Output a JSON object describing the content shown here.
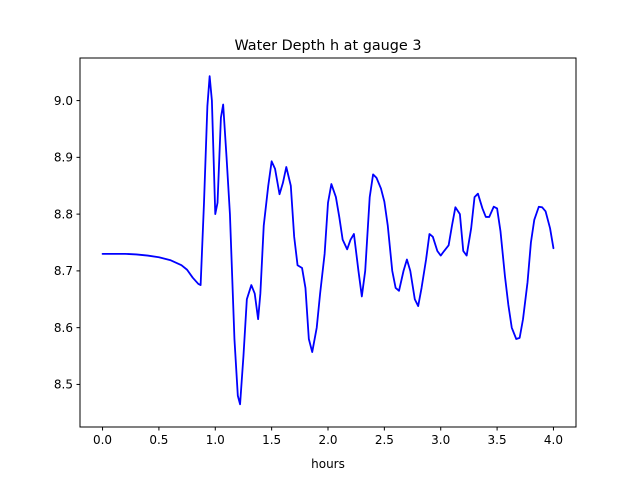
{
  "chart_data": {
    "type": "line",
    "title": "Water Depth h at gauge 3",
    "xlabel": "hours",
    "ylabel": "",
    "xlim": [
      -0.2,
      4.2
    ],
    "ylim": [
      8.425,
      9.075
    ],
    "x_ticks": [
      0.0,
      0.5,
      1.0,
      1.5,
      2.0,
      2.5,
      3.0,
      3.5,
      4.0
    ],
    "x_tick_labels": [
      "0.0",
      "0.5",
      "1.0",
      "1.5",
      "2.0",
      "2.5",
      "3.0",
      "3.5",
      "4.0"
    ],
    "y_ticks": [
      8.5,
      8.6,
      8.7,
      8.8,
      8.9,
      9.0
    ],
    "y_tick_labels": [
      "8.5",
      "8.6",
      "8.7",
      "8.8",
      "8.9",
      "9.0"
    ],
    "grid": false,
    "legend": "none",
    "series": [
      {
        "color": "#0000ff",
        "x": [
          0.0,
          0.1,
          0.2,
          0.3,
          0.4,
          0.5,
          0.6,
          0.7,
          0.75,
          0.8,
          0.85,
          0.87,
          0.9,
          0.93,
          0.95,
          0.97,
          1.0,
          1.02,
          1.05,
          1.07,
          1.1,
          1.13,
          1.17,
          1.2,
          1.22,
          1.25,
          1.28,
          1.32,
          1.35,
          1.38,
          1.4,
          1.43,
          1.47,
          1.5,
          1.53,
          1.57,
          1.6,
          1.63,
          1.67,
          1.7,
          1.73,
          1.77,
          1.8,
          1.83,
          1.86,
          1.9,
          1.93,
          1.97,
          2.0,
          2.03,
          2.07,
          2.1,
          2.13,
          2.17,
          2.2,
          2.23,
          2.27,
          2.3,
          2.33,
          2.37,
          2.4,
          2.43,
          2.47,
          2.5,
          2.53,
          2.57,
          2.6,
          2.63,
          2.67,
          2.7,
          2.73,
          2.77,
          2.8,
          2.83,
          2.87,
          2.9,
          2.93,
          2.97,
          3.0,
          3.03,
          3.07,
          3.1,
          3.13,
          3.17,
          3.2,
          3.23,
          3.27,
          3.3,
          3.33,
          3.37,
          3.4,
          3.43,
          3.47,
          3.5,
          3.53,
          3.57,
          3.6,
          3.63,
          3.67,
          3.7,
          3.73,
          3.77,
          3.8,
          3.83,
          3.87,
          3.9,
          3.93,
          3.97,
          4.0
        ],
        "y": [
          8.73,
          8.73,
          8.73,
          8.729,
          8.727,
          8.724,
          8.719,
          8.71,
          8.702,
          8.688,
          8.677,
          8.675,
          8.82,
          8.99,
          9.043,
          9.0,
          8.8,
          8.82,
          8.97,
          8.993,
          8.9,
          8.8,
          8.58,
          8.48,
          8.465,
          8.55,
          8.65,
          8.675,
          8.66,
          8.615,
          8.66,
          8.78,
          8.85,
          8.893,
          8.88,
          8.835,
          8.855,
          8.883,
          8.85,
          8.76,
          8.71,
          8.705,
          8.67,
          8.58,
          8.557,
          8.6,
          8.66,
          8.73,
          8.82,
          8.853,
          8.83,
          8.795,
          8.755,
          8.738,
          8.755,
          8.765,
          8.7,
          8.655,
          8.7,
          8.83,
          8.87,
          8.864,
          8.845,
          8.822,
          8.78,
          8.7,
          8.67,
          8.665,
          8.7,
          8.72,
          8.7,
          8.65,
          8.638,
          8.67,
          8.72,
          8.765,
          8.76,
          8.735,
          8.727,
          8.735,
          8.745,
          8.78,
          8.812,
          8.8,
          8.735,
          8.727,
          8.775,
          8.83,
          8.836,
          8.81,
          8.795,
          8.795,
          8.813,
          8.81,
          8.77,
          8.69,
          8.64,
          8.6,
          8.58,
          8.582,
          8.615,
          8.68,
          8.75,
          8.79,
          8.813,
          8.812,
          8.805,
          8.775,
          8.74
        ]
      }
    ]
  }
}
